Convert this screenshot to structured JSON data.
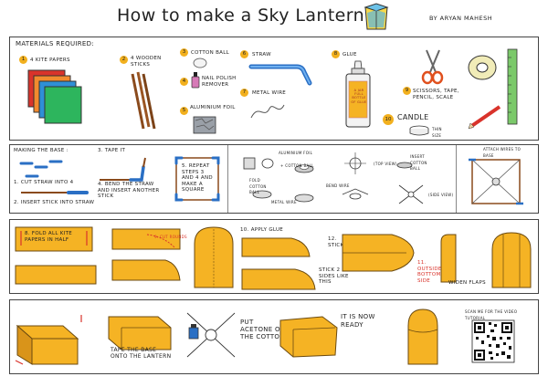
{
  "header": {
    "title": "How to make a Sky Lantern",
    "author": "BY ARYAN MAHESH"
  },
  "materials": {
    "heading": "MATERIALS REQUIRED:",
    "items": [
      {
        "num": "1",
        "label": "4 KITE PAPERS"
      },
      {
        "num": "2",
        "label": "4 WOODEN STICKS"
      },
      {
        "num": "3",
        "label": "COTTON BALL"
      },
      {
        "num": "4",
        "label": "NAIL POLISH REMOVER"
      },
      {
        "num": "5",
        "label": "ALUMINIUM FOIL"
      },
      {
        "num": "6",
        "label": "STRAW"
      },
      {
        "num": "7",
        "label": "METAL WIRE"
      },
      {
        "num": "8",
        "label": "GLUE"
      },
      {
        "num": "9",
        "label": "SCISSORS, TAPE, PENCIL, SCALE"
      },
      {
        "num": "10",
        "label": "CANDLE"
      }
    ],
    "candle_note": "THIN SIZE",
    "bottle_text": "A JAR FULL BOTTLE OF GLUE"
  },
  "base": {
    "heading": "MAKING THE BASE :",
    "step1": "1. CUT STRAW INTO 4",
    "step2": "2. INSERT STICK INTO STRAW",
    "step3": "3. TAPE IT",
    "step4": "4. BEND THE STRAW AND INSERT ANOTHER STICK",
    "step5": "5. REPEAT STEPS 3 AND 4 AND MAKE A SQUARE",
    "foil_label": "ALUMINIUM FOIL",
    "cotton_ball": "+ COTTON BALL",
    "fold_cotton": "FOLD COTTON BALL",
    "top_view": "(TOP VIEW)",
    "insert_cotton": "INSERT COTTON BALL",
    "bend_wire": "BEND WIRE",
    "metal_wire": "METAL WIRE",
    "side_view": "(SIDE VIEW)",
    "attach": "ATTACH WIRES TO BASE"
  },
  "body": {
    "step8": "8. FOLD ALL KITE PAPERS IN HALF",
    "step9": "9. CUT ROUNDS",
    "step10": "10. APPLY GLUE",
    "step12": "12. STICK",
    "stick_sides": "STICK 2 SIDES LIKE THIS",
    "step11": "11. OUTSIDE BOTTOM SIDE",
    "widen": "WIDEN FLAPS"
  },
  "finish": {
    "tape_base": "TAPE THE BASE ONTO THE LANTERN",
    "acetone": "PUT ACETONE ON THE COTTON",
    "ready": "IT IS NOW READY",
    "scan": "SCAN ME FOR THE VIDEO TUTORIAL"
  },
  "colors": {
    "paper": "#f5b324",
    "paper_edge": "#6b4a10",
    "accent_blue": "#3a7fd0"
  }
}
